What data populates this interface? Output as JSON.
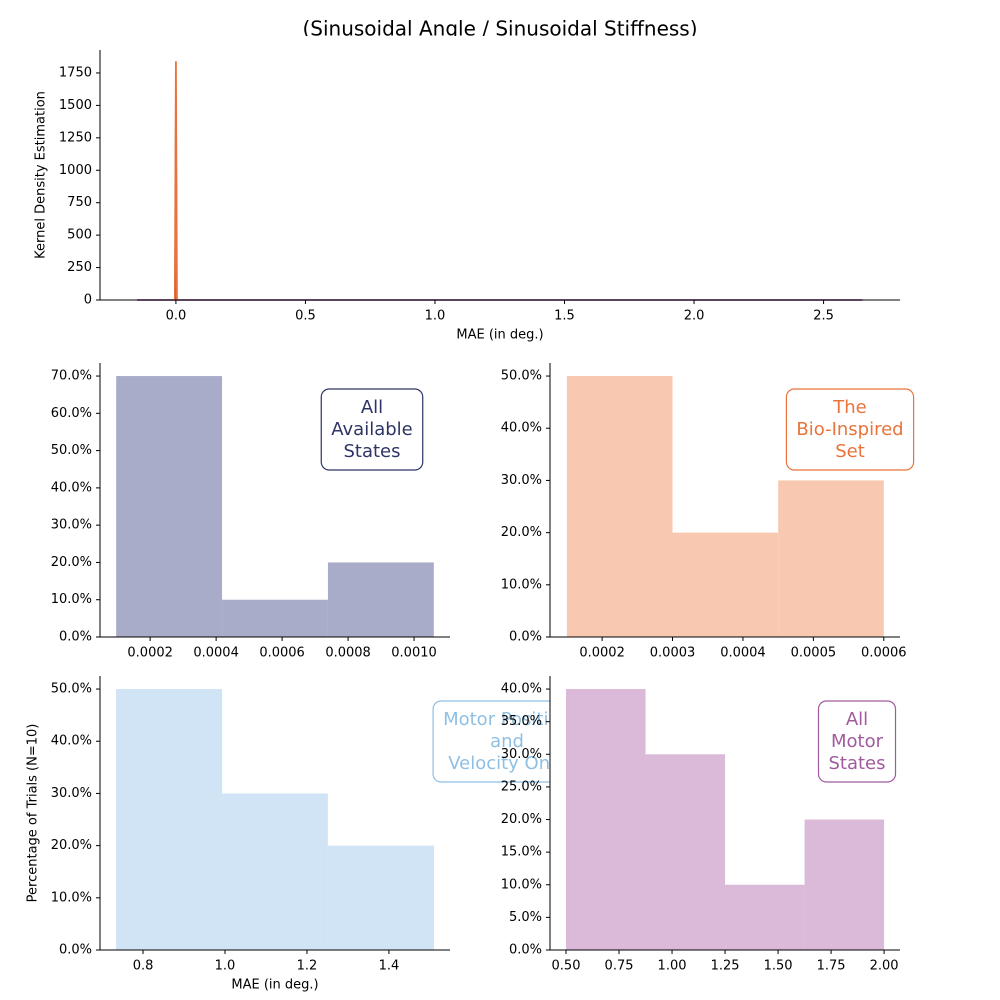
{
  "title": "(Sinusoidal Angle / Sinusoidal Stiffness)",
  "chart_data": [
    {
      "type": "line",
      "x_label": "MAE (in deg.)",
      "y_label": "Kernel Density Estimation",
      "xlim": [
        -0.293,
        2.795
      ],
      "ylim": [
        0,
        1927
      ],
      "xticks": [
        {
          "value": 0,
          "label": "0.0"
        },
        0.5,
        {
          "value": 1,
          "label": "1.0"
        },
        1.5,
        {
          "value": 2,
          "label": "2.0"
        },
        2.5
      ],
      "yticks": [
        0,
        250,
        500,
        750,
        1000,
        1250,
        1500,
        1750
      ],
      "series": [
        {
          "color": "#a15a9e",
          "x": [
            -0.15,
            2.65
          ],
          "values": [
            0,
            0
          ]
        },
        {
          "color": "#2e3466",
          "x": [
            -0.003,
            0,
            0.003
          ],
          "values": [
            0,
            1400,
            0
          ]
        },
        {
          "color": "#e8743b",
          "x": [
            -0.004,
            0,
            0.004
          ],
          "values": [
            0,
            1840,
            0
          ]
        }
      ]
    },
    {
      "type": "histogram",
      "color": "#a9acc9",
      "annotation_color": "#2e3466",
      "annotation": [
        "All",
        "Available",
        "States"
      ],
      "bins": [
        9.7e-05,
        0.000418,
        0.000739,
        0.00106
      ],
      "values": [
        70,
        10,
        20
      ],
      "xlim": [
        4.8e-05,
        0.001109
      ],
      "ylim": [
        0,
        73.5
      ],
      "xticks": [
        0.0002,
        0.0004,
        0.0006,
        0.0008,
        {
          "value": 0.001,
          "label": "0.0010"
        }
      ],
      "yticks": [
        {
          "value": 0,
          "label": "0.0%"
        },
        {
          "value": 10,
          "label": "10.0%"
        },
        {
          "value": 20,
          "label": "20.0%"
        },
        {
          "value": 30,
          "label": "30.0%"
        },
        {
          "value": 40,
          "label": "40.0%"
        },
        {
          "value": 50,
          "label": "50.0%"
        },
        {
          "value": 60,
          "label": "60.0%"
        },
        {
          "value": 70,
          "label": "70.0%"
        }
      ]
    },
    {
      "type": "histogram",
      "color": "#f9c8b0",
      "annotation_color": "#e8743b",
      "annotation": [
        "The",
        "Bio-Inspired",
        "Set"
      ],
      "bins": [
        0.00015,
        0.0003,
        0.00045,
        0.0006
      ],
      "values": [
        50,
        20,
        30
      ],
      "xlim": [
        0.000126,
        0.000623
      ],
      "ylim": [
        0,
        52.5
      ],
      "xticks": [
        0.0002,
        0.0003,
        0.0004,
        0.0005,
        0.0006
      ],
      "yticks": [
        {
          "value": 0,
          "label": "0.0%"
        },
        {
          "value": 10,
          "label": "10.0%"
        },
        {
          "value": 20,
          "label": "20.0%"
        },
        {
          "value": 30,
          "label": "30.0%"
        },
        {
          "value": 40,
          "label": "40.0%"
        },
        {
          "value": 50,
          "label": "50.0%"
        }
      ]
    },
    {
      "type": "histogram",
      "color": "#d0e4f5",
      "annotation_color": "#8fbfe3",
      "annotation": [
        "Motor Position",
        "and",
        "Velocity Only"
      ],
      "x_label": "MAE (in deg.)",
      "y_label": "Percentage of Trials (N=10)",
      "bins": [
        0.734,
        0.993,
        1.251,
        1.51
      ],
      "values": [
        50,
        30,
        20
      ],
      "xlim": [
        0.695,
        1.549
      ],
      "ylim": [
        0,
        52.5
      ],
      "xticks": [
        0.8,
        {
          "value": 1,
          "label": "1.0"
        },
        1.2,
        1.4
      ],
      "yticks": [
        {
          "value": 0,
          "label": "0.0%"
        },
        {
          "value": 10,
          "label": "10.0%"
        },
        {
          "value": 20,
          "label": "20.0%"
        },
        {
          "value": 30,
          "label": "30.0%"
        },
        {
          "value": 40,
          "label": "40.0%"
        },
        {
          "value": 50,
          "label": "50.0%"
        }
      ]
    },
    {
      "type": "histogram",
      "color": "#dbb9d8",
      "annotation_color": "#a15a9e",
      "annotation": [
        "All",
        "Motor",
        "States"
      ],
      "bins": [
        0.5,
        0.875,
        1.25,
        1.625,
        2.0
      ],
      "values": [
        40,
        30,
        10,
        20
      ],
      "xlim": [
        0.4245,
        2.075
      ],
      "ylim": [
        0,
        42
      ],
      "xticks": [
        {
          "value": 0.5,
          "label": "0.50"
        },
        {
          "value": 0.75,
          "label": "0.75"
        },
        {
          "value": 1,
          "label": "1.00"
        },
        {
          "value": 1.25,
          "label": "1.25"
        },
        {
          "value": 1.5,
          "label": "1.50"
        },
        {
          "value": 1.75,
          "label": "1.75"
        },
        {
          "value": 2,
          "label": "2.00"
        }
      ],
      "yticks": [
        {
          "value": 0,
          "label": "0.0%"
        },
        {
          "value": 5,
          "label": "5.0%"
        },
        {
          "value": 10,
          "label": "10.0%"
        },
        {
          "value": 15,
          "label": "15.0%"
        },
        {
          "value": 20,
          "label": "20.0%"
        },
        {
          "value": 25,
          "label": "25.0%"
        },
        {
          "value": 30,
          "label": "30.0%"
        },
        {
          "value": 35,
          "label": "35.0%"
        },
        {
          "value": 40,
          "label": "40.0%"
        }
      ]
    }
  ]
}
